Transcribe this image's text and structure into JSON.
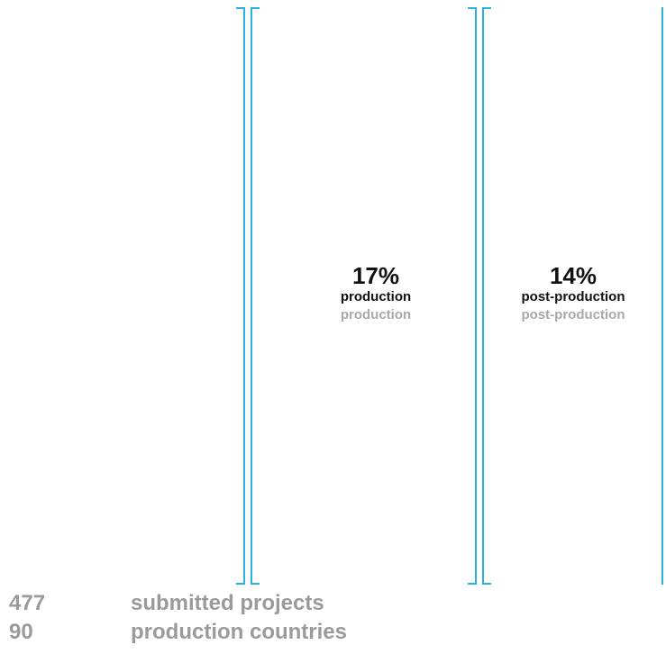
{
  "chart_data": {
    "type": "bar",
    "categories": [
      "production",
      "post-production"
    ],
    "values": [
      17,
      14
    ],
    "unit": "%",
    "series": [
      {
        "values": [
          17,
          14
        ]
      }
    ],
    "labels": [
      {
        "percent": "17%",
        "label": "production",
        "sub_label": "production"
      },
      {
        "percent": "14%",
        "label": "post-production",
        "sub_label": "post-production"
      }
    ],
    "colors": {
      "accent": "#2ab0e4",
      "text_primary": "#111111",
      "text_secondary": "#a9a9a9"
    }
  },
  "summary": {
    "rows": [
      {
        "value": "477",
        "label": "submitted projects"
      },
      {
        "value": "90",
        "label": "production countries"
      }
    ]
  }
}
